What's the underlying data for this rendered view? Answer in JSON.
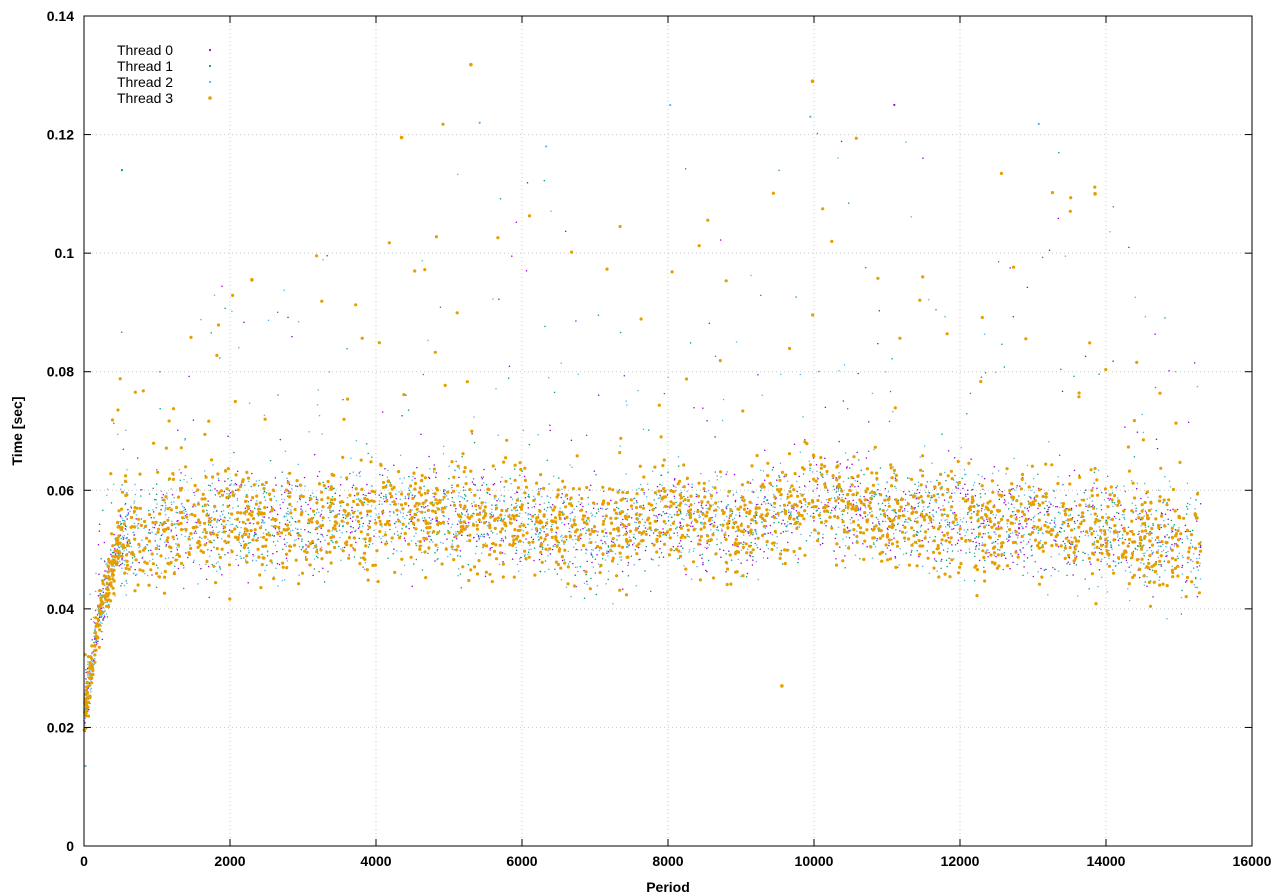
{
  "chart_data": {
    "type": "scatter",
    "title": "",
    "xlabel": "Period",
    "ylabel": "Time [sec]",
    "xlim": [
      0,
      16000
    ],
    "ylim": [
      0,
      0.14
    ],
    "x_ticks": [
      "0",
      "2000",
      "4000",
      "6000",
      "8000",
      "10000",
      "12000",
      "14000",
      "16000"
    ],
    "y_ticks": [
      "0",
      "0.02",
      "0.04",
      "0.06",
      "0.08",
      "0.1",
      "0.12",
      "0.14"
    ],
    "grid": true,
    "legend_position": "top-left",
    "series": [
      {
        "name": "Thread 0",
        "color": "#9400d3",
        "marker": "dot"
      },
      {
        "name": "Thread 1",
        "color": "#009e73",
        "marker": "dot"
      },
      {
        "name": "Thread 2",
        "color": "#56b4e9",
        "marker": "dot"
      },
      {
        "name": "Thread 3",
        "color": "#e69f00",
        "marker": "dot-large"
      }
    ],
    "x_max_observed": 15300,
    "profile": [
      {
        "x": 0,
        "center": 0.022,
        "min": 0.013,
        "max": 0.034
      },
      {
        "x": 200,
        "center": 0.038,
        "min": 0.022,
        "max": 0.055
      },
      {
        "x": 500,
        "center": 0.052,
        "min": 0.036,
        "max": 0.088
      },
      {
        "x": 1000,
        "center": 0.053,
        "min": 0.037,
        "max": 0.089
      },
      {
        "x": 2000,
        "center": 0.055,
        "min": 0.036,
        "max": 0.096
      },
      {
        "x": 3000,
        "center": 0.054,
        "min": 0.035,
        "max": 0.098
      },
      {
        "x": 4000,
        "center": 0.056,
        "min": 0.033,
        "max": 0.108
      },
      {
        "x": 5000,
        "center": 0.056,
        "min": 0.031,
        "max": 0.132
      },
      {
        "x": 6000,
        "center": 0.055,
        "min": 0.031,
        "max": 0.118
      },
      {
        "x": 7000,
        "center": 0.052,
        "min": 0.032,
        "max": 0.1
      },
      {
        "x": 8000,
        "center": 0.056,
        "min": 0.031,
        "max": 0.125
      },
      {
        "x": 9000,
        "center": 0.054,
        "min": 0.031,
        "max": 0.1
      },
      {
        "x": 10000,
        "center": 0.058,
        "min": 0.027,
        "max": 0.129
      },
      {
        "x": 11000,
        "center": 0.056,
        "min": 0.031,
        "max": 0.125
      },
      {
        "x": 12000,
        "center": 0.055,
        "min": 0.029,
        "max": 0.107
      },
      {
        "x": 13000,
        "center": 0.054,
        "min": 0.03,
        "max": 0.122
      },
      {
        "x": 14000,
        "center": 0.053,
        "min": 0.03,
        "max": 0.11
      },
      {
        "x": 15300,
        "center": 0.05,
        "min": 0.031,
        "max": 0.082
      }
    ],
    "notable_points": [
      {
        "series": "Thread 3",
        "x": 5300,
        "y": 0.1318
      },
      {
        "series": "Thread 3",
        "x": 9980,
        "y": 0.129
      },
      {
        "series": "Thread 2",
        "x": 9950,
        "y": 0.123
      },
      {
        "series": "Thread 2",
        "x": 8030,
        "y": 0.125
      },
      {
        "series": "Thread 0",
        "x": 11100,
        "y": 0.125
      },
      {
        "series": "Thread 2",
        "x": 13080,
        "y": 0.1218
      },
      {
        "series": "Thread 2",
        "x": 5420,
        "y": 0.122
      },
      {
        "series": "Thread 3",
        "x": 4350,
        "y": 0.1195
      },
      {
        "series": "Thread 2",
        "x": 6330,
        "y": 0.118
      },
      {
        "series": "Thread 1",
        "x": 520,
        "y": 0.114
      },
      {
        "series": "Thread 3",
        "x": 13850,
        "y": 0.11
      },
      {
        "series": "Thread 3",
        "x": 2300,
        "y": 0.0955
      },
      {
        "series": "Thread 3",
        "x": 9560,
        "y": 0.027
      },
      {
        "series": "Thread 2",
        "x": 20,
        "y": 0.0135
      }
    ]
  }
}
